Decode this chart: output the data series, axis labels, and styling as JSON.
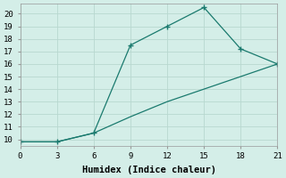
{
  "line1_x": [
    0,
    3,
    6,
    9,
    12,
    15,
    18,
    21
  ],
  "line1_y": [
    9.8,
    9.8,
    10.5,
    17.5,
    19.0,
    20.5,
    17.2,
    16.0
  ],
  "line2_x": [
    0,
    3,
    6,
    9,
    12,
    15,
    18,
    21
  ],
  "line2_y": [
    9.8,
    9.8,
    10.5,
    11.8,
    13.0,
    14.0,
    15.0,
    16.0
  ],
  "line_color": "#1a7a6e",
  "background_color": "#d4eee8",
  "grid_color": "#b8d8d0",
  "xlabel": "Humidex (Indice chaleur)",
  "xlim": [
    0,
    21
  ],
  "ylim": [
    9.5,
    20.8
  ],
  "xticks": [
    0,
    3,
    6,
    9,
    12,
    15,
    18,
    21
  ],
  "yticks": [
    10,
    11,
    12,
    13,
    14,
    15,
    16,
    17,
    18,
    19,
    20
  ],
  "xlabel_fontsize": 7.5,
  "tick_fontsize": 6.5
}
